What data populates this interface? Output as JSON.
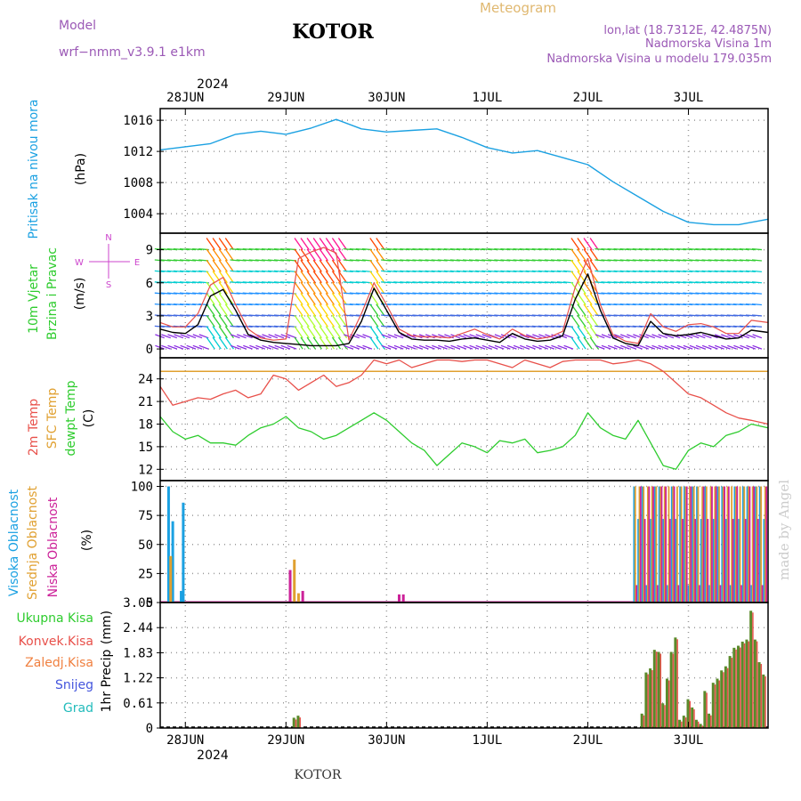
{
  "header": {
    "model_label": "Model",
    "model_name": "wrf−nmm_v3.9.1  e1km",
    "station": "KOTOR",
    "meteogram": "Meteogram",
    "lonlat": "lon,lat (18.7312E, 42.4875N)",
    "elevation": "Nadmorska Visina 1m",
    "model_elevation": "Nadmorska Visina u modelu 179.035m",
    "year": "2024",
    "footer_station": "KOTOR",
    "watermark": "made by Angel"
  },
  "colors": {
    "pressure": "#1ba1e2",
    "temp2m": "#e8504a",
    "sfc_temp": "#e0a030",
    "dewpt": "#2ecc2e",
    "cloud_high": "#1ba1e2",
    "cloud_mid": "#e0a030",
    "cloud_low": "#cc2299",
    "precip_total": "#5a8a2a",
    "precip_conv": "#e8504a",
    "wind_mean": "#000000",
    "wind_gust": "#e8504a"
  },
  "x_axis": {
    "ticks": [
      "28JUN",
      "29JUN",
      "30JUN",
      "1JUL",
      "2JUL",
      "3JUL"
    ],
    "start_hour": -6,
    "end_hour": 139
  },
  "chart_data": [
    {
      "type": "line",
      "panel": "pressure",
      "ylabel": "Pritisak na nivou mora",
      "unit": "(hPa)",
      "yticks": [
        "1004",
        "1008",
        "1012",
        "1016"
      ],
      "ylim": [
        1001.5,
        1017.5
      ],
      "x_hours": [
        -6,
        0,
        6,
        12,
        18,
        24,
        30,
        36,
        42,
        48,
        54,
        60,
        66,
        72,
        78,
        84,
        90,
        96,
        102,
        108,
        114,
        120,
        126,
        132,
        139
      ],
      "series": [
        {
          "values": [
            1012.2,
            1012.6,
            1013.0,
            1014.2,
            1014.6,
            1014.2,
            1015.0,
            1016.1,
            1014.9,
            1014.5,
            1014.7,
            1014.9,
            1013.8,
            1012.5,
            1011.8,
            1012.1,
            1011.2,
            1010.3,
            1008.1,
            1006.2,
            1004.3,
            1002.9,
            1002.6,
            1002.6,
            1003.3
          ]
        }
      ]
    },
    {
      "type": "line",
      "panel": "wind",
      "ylabel": "10m Vjetar",
      "ylabel2": "Brzina i Pravac",
      "unit": "(m/s)",
      "yticks": [
        "0",
        "3",
        "6",
        "9"
      ],
      "ylim": [
        -0.8,
        10.5
      ],
      "compass": [
        "N",
        "E",
        "S",
        "W"
      ],
      "x_hours": [
        -6,
        -3,
        0,
        3,
        6,
        9,
        12,
        15,
        18,
        21,
        24,
        27,
        30,
        33,
        36,
        39,
        42,
        45,
        48,
        51,
        54,
        57,
        60,
        63,
        66,
        69,
        72,
        75,
        78,
        81,
        84,
        87,
        90,
        93,
        96,
        99,
        102,
        105,
        108,
        111,
        114,
        117,
        120,
        123,
        126,
        129,
        132,
        135,
        139
      ],
      "series": [
        {
          "name": "mean",
          "values": [
            1.8,
            1.5,
            1.4,
            2.2,
            4.8,
            5.4,
            3.5,
            1.3,
            0.8,
            0.6,
            0.5,
            0.4,
            0.3,
            0.3,
            0.3,
            0.5,
            2.5,
            5.5,
            3.5,
            1.5,
            0.9,
            0.8,
            0.8,
            0.7,
            0.9,
            1.0,
            0.8,
            0.6,
            1.4,
            0.9,
            0.7,
            0.8,
            1.2,
            4.5,
            6.8,
            3.5,
            1.0,
            0.5,
            0.3,
            2.5,
            1.4,
            1.2,
            1.3,
            1.5,
            1.2,
            0.9,
            1.0,
            1.7,
            1.5
          ]
        },
        {
          "name": "gust",
          "values": [
            2.4,
            2.0,
            2.0,
            3.2,
            5.8,
            6.5,
            4.0,
            1.8,
            1.0,
            0.8,
            0.9,
            8.2,
            8.8,
            9.2,
            8.7,
            0.8,
            3.2,
            6.0,
            4.0,
            1.8,
            1.2,
            1.1,
            1.1,
            1.0,
            1.4,
            1.8,
            1.3,
            0.9,
            1.8,
            1.2,
            0.9,
            1.1,
            1.6,
            5.6,
            8.2,
            4.0,
            1.3,
            0.7,
            0.5,
            3.2,
            2.0,
            1.6,
            2.2,
            2.3,
            2.0,
            1.4,
            1.4,
            2.6,
            2.4
          ]
        }
      ]
    },
    {
      "type": "line",
      "panel": "temperature",
      "ylabel": "2m Temp",
      "ylabel2": "SFC Temp",
      "ylabel3": "dewpt Temp",
      "unit": "(C)",
      "yticks": [
        "12",
        "15",
        "18",
        "21",
        "24"
      ],
      "ylim": [
        10.5,
        26.8
      ],
      "sfc_temp_value": 25.0,
      "x_hours": [
        -6,
        -3,
        0,
        3,
        6,
        9,
        12,
        15,
        18,
        21,
        24,
        27,
        30,
        33,
        36,
        39,
        42,
        45,
        48,
        51,
        54,
        57,
        60,
        63,
        66,
        69,
        72,
        75,
        78,
        81,
        84,
        87,
        90,
        93,
        96,
        99,
        102,
        105,
        108,
        111,
        114,
        117,
        120,
        123,
        126,
        129,
        132,
        135,
        139
      ],
      "series": [
        {
          "name": "2m Temp",
          "values": [
            23.0,
            20.5,
            21.0,
            21.5,
            21.3,
            22.0,
            22.5,
            21.5,
            22.0,
            24.5,
            24.0,
            22.5,
            23.5,
            24.5,
            23.0,
            23.5,
            24.5,
            26.5,
            26.0,
            26.5,
            25.5,
            26.0,
            26.5,
            26.5,
            26.3,
            26.5,
            26.5,
            26.0,
            25.5,
            26.5,
            26.0,
            25.5,
            26.3,
            26.5,
            26.5,
            26.5,
            26.0,
            26.2,
            26.5,
            26.0,
            25.0,
            23.5,
            22.0,
            21.5,
            20.5,
            19.5,
            18.8,
            18.5,
            18.0
          ]
        },
        {
          "name": "dewpt Temp",
          "values": [
            19.0,
            17.0,
            16.0,
            16.5,
            15.5,
            15.5,
            15.2,
            16.5,
            17.5,
            18.0,
            19.0,
            17.5,
            17.0,
            16.0,
            16.5,
            17.5,
            18.5,
            19.5,
            18.5,
            17.0,
            15.5,
            14.5,
            12.5,
            14.0,
            15.5,
            15.0,
            14.2,
            15.8,
            15.5,
            16.0,
            14.2,
            14.5,
            15.0,
            16.5,
            19.5,
            17.5,
            16.5,
            16.0,
            18.5,
            15.5,
            12.5,
            12.0,
            14.5,
            15.5,
            15.0,
            16.5,
            17.0,
            18.0,
            17.5
          ]
        }
      ]
    },
    {
      "type": "bar",
      "panel": "clouds",
      "ylabel": "Visoka Oblacnost",
      "ylabel2": "Srednja Oblacnost",
      "ylabel3": "Niska Oblacnost",
      "unit": "(%)",
      "yticks": [
        "0",
        "25",
        "50",
        "75",
        "100"
      ],
      "ylim": [
        0,
        105
      ],
      "series": [
        {
          "name": "high",
          "x_hours": [
            -4,
            -3,
            -1,
            -0.5
          ],
          "values": [
            100,
            70,
            10,
            86
          ]
        },
        {
          "name": "mid",
          "x_hours": [
            -3.5,
            26,
            27
          ],
          "values": [
            40,
            37,
            8
          ]
        },
        {
          "name": "low",
          "x_hours": [
            25,
            28,
            51,
            52
          ],
          "values": [
            28,
            10,
            7,
            7
          ]
        }
      ],
      "overcast_start_hour": 107,
      "overcast_end_hour": 138
    },
    {
      "type": "bar",
      "panel": "precipitation",
      "legend": [
        "Ukupna Kisa",
        "Konvek.Kisa",
        "Zaledj.Kisa",
        "Snijeg",
        "Grad"
      ],
      "ylabel": "1hr Precip",
      "unit": "(mm)",
      "yticks": [
        "0",
        "0.61",
        "1.22",
        "1.83",
        "2.44",
        "3.05"
      ],
      "ylim": [
        0,
        3.05
      ],
      "x_hours": [
        26,
        27,
        109,
        110,
        111,
        112,
        113,
        114,
        115,
        116,
        117,
        118,
        119,
        120,
        121,
        122,
        123,
        124,
        125,
        126,
        127,
        128,
        129,
        130,
        131,
        132,
        133,
        134,
        135,
        136,
        137,
        138
      ],
      "values": [
        0.25,
        0.3,
        0.35,
        1.35,
        1.45,
        1.9,
        1.85,
        0.6,
        1.2,
        1.85,
        2.2,
        0.2,
        0.3,
        0.7,
        0.5,
        0.2,
        0.1,
        0.9,
        0.35,
        1.1,
        1.2,
        1.4,
        1.5,
        1.75,
        1.95,
        2.0,
        2.1,
        2.15,
        2.85,
        2.15,
        1.6,
        1.3
      ]
    }
  ]
}
